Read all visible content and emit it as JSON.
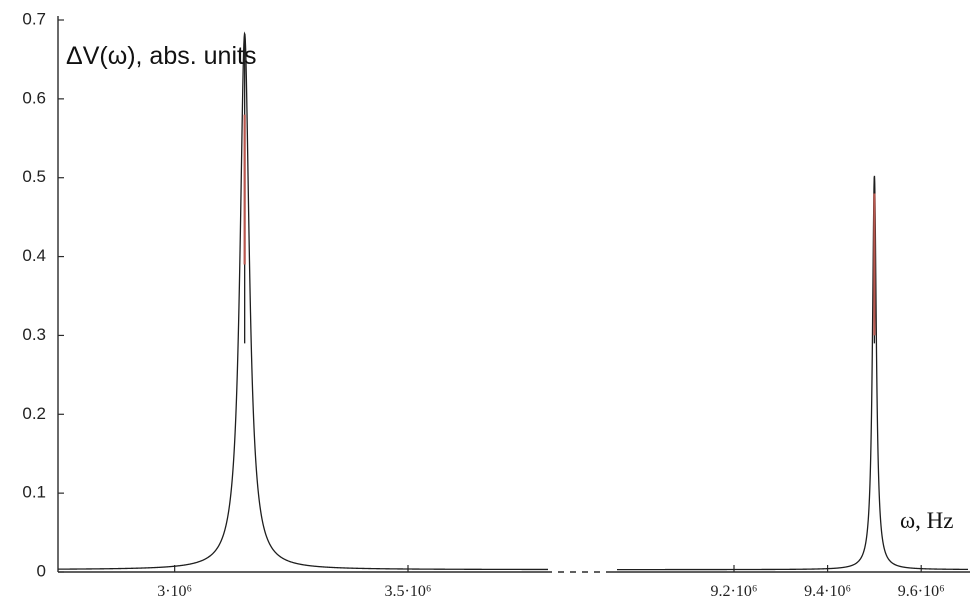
{
  "chart_data": {
    "type": "line",
    "ylabel": "ΔV(ω), abs. units",
    "xlabel": "ω, Hz",
    "ylim": [
      0,
      0.7
    ],
    "y_ticks": [
      "0",
      "0.1",
      "0.2",
      "0.3",
      "0.4",
      "0.5",
      "0.6",
      "0.7"
    ],
    "x_axis_break": true,
    "x_segments": [
      {
        "xlim": [
          2750000,
          3800000
        ],
        "ticks": [
          3000000,
          3500000
        ],
        "tick_labels": [
          "3·10⁶",
          "3.5·10⁶"
        ]
      },
      {
        "xlim": [
          8950000,
          9700000
        ],
        "ticks": [
          9200000,
          9400000,
          9600000
        ],
        "tick_labels": [
          "9.2·10⁶",
          "9.4·10⁶",
          "9.6·10⁶"
        ]
      }
    ],
    "series": [
      {
        "peaks": [
          {
            "x": 3150000,
            "y": 0.68,
            "gamma": 12000,
            "segment": 0,
            "highlight": [
              0.39,
              0.58
            ]
          },
          {
            "x": 9500000,
            "y": 0.5,
            "gamma": 5000,
            "segment": 1,
            "highlight": [
              0.3,
              0.48
            ]
          }
        ],
        "baseline": 0.003
      }
    ],
    "colors": {
      "line": "#1e1e1e",
      "highlight": "#b8574e",
      "axis": "#2b2b2b"
    }
  }
}
